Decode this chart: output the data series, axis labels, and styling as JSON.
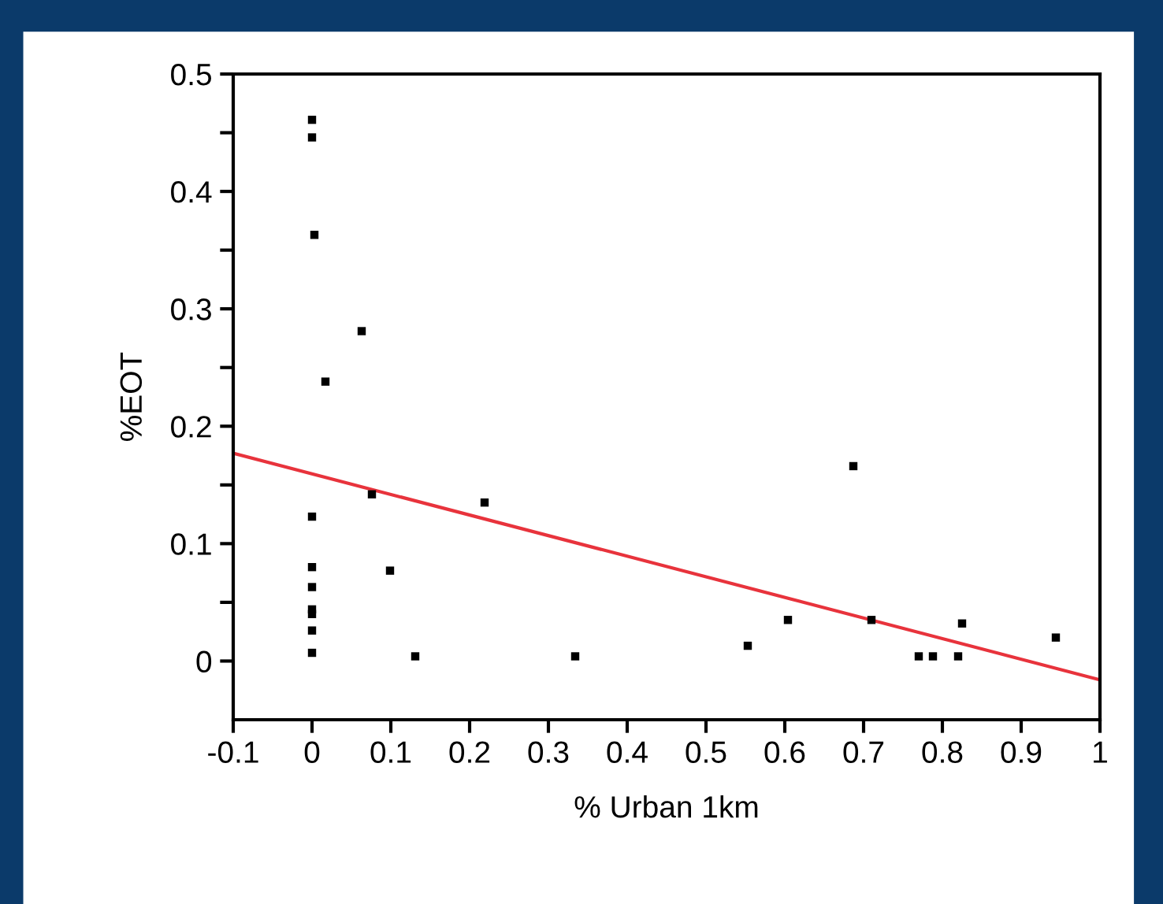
{
  "chart_data": {
    "type": "scatter",
    "xlabel": "% Urban 1km",
    "ylabel": "%EOT",
    "xlim": [
      -0.1,
      1
    ],
    "ylim": [
      -0.05,
      0.5
    ],
    "xticks": [
      {
        "value": -0.1,
        "label": "-0.1"
      },
      {
        "value": 0,
        "label": "0"
      },
      0.1,
      0.2,
      0.3,
      0.4,
      0.5,
      0.6,
      0.7,
      0.8,
      0.9,
      {
        "value": 1,
        "label": "1"
      }
    ],
    "yticks": [
      {
        "value": 0,
        "label": "0"
      },
      {
        "value": 0.05,
        "label": null
      },
      0.1,
      {
        "value": 0.15,
        "label": null
      },
      0.2,
      {
        "value": 0.25,
        "label": null
      },
      0.3,
      {
        "value": 0.35,
        "label": null
      },
      0.4,
      {
        "value": 0.45,
        "label": null
      },
      0.5
    ],
    "grid": false,
    "legend": false,
    "series": [
      {
        "marker": "square",
        "color": "#000000",
        "x": [
          0,
          0,
          0.003,
          0.063,
          0.017,
          0.076,
          0.219,
          0,
          0,
          0.099,
          0,
          0,
          0,
          0,
          0,
          0.131,
          0.334,
          0.553,
          0.604,
          0.687,
          0.71,
          0.77,
          0.788,
          0.82,
          0.825,
          0.944
        ],
        "values": [
          0.461,
          0.446,
          0.363,
          0.281,
          0.238,
          0.142,
          0.135,
          0.123,
          0.08,
          0.077,
          0.063,
          0.044,
          0.04,
          0.026,
          0.007,
          0.004,
          0.004,
          0.013,
          0.035,
          0.166,
          0.035,
          0.004,
          0.004,
          0.004,
          0.032,
          0.02
        ]
      },
      {
        "type": "line",
        "color": "#e8333c",
        "x": [
          -0.1,
          1
        ],
        "values": [
          0.177,
          -0.016
        ]
      }
    ]
  }
}
